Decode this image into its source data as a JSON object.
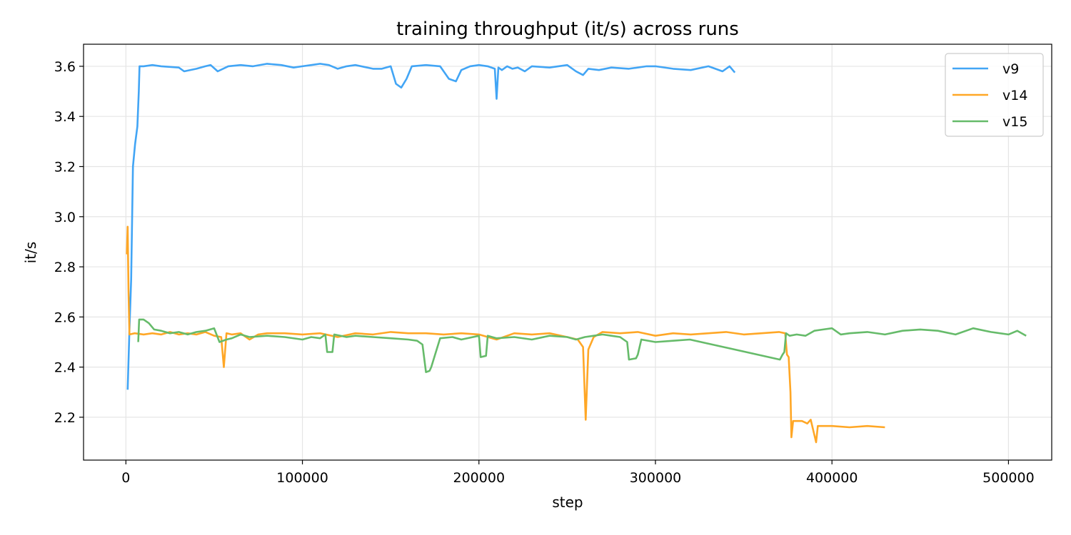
{
  "chart_data": {
    "type": "line",
    "title": "training throughput (it/s) across runs",
    "xlabel": "step",
    "ylabel": "it/s",
    "xlim": [
      -24000,
      524500
    ],
    "ylim": [
      2.029,
      3.688
    ],
    "xticks": [
      0,
      100000,
      200000,
      300000,
      400000,
      500000
    ],
    "yticks": [
      2.2,
      2.4,
      2.6,
      2.8,
      3.0,
      3.2,
      3.4,
      3.6
    ],
    "ytick_labels": [
      "2.2",
      "2.4",
      "2.6",
      "2.8",
      "3.0",
      "3.2",
      "3.4",
      "3.6"
    ],
    "grid": true,
    "legend_position": "top-right",
    "series": [
      {
        "name": "v9",
        "color": "#42a5f5",
        "x": [
          1000,
          2000,
          3000,
          4000,
          5200,
          6500,
          7300,
          7700,
          10000,
          15000,
          20000,
          30000,
          33000,
          40000,
          45000,
          48000,
          52000,
          58000,
          65000,
          72000,
          80000,
          88000,
          95000,
          100000,
          105000,
          110000,
          115000,
          120000,
          125000,
          130000,
          140000,
          145000,
          150000,
          153000,
          156000,
          159000,
          162000,
          170000,
          178000,
          183000,
          187000,
          190000,
          195000,
          200000,
          205000,
          209000,
          210000,
          211000,
          213000,
          216000,
          219000,
          222000,
          226000,
          230000,
          240000,
          250000,
          255000,
          259000,
          262000,
          268000,
          275000,
          285000,
          295000,
          300000,
          310000,
          320000,
          330000,
          338000,
          342000,
          345000
        ],
        "y": [
          2.31,
          2.55,
          2.75,
          3.2,
          3.29,
          3.36,
          3.5,
          3.6,
          3.6,
          3.605,
          3.6,
          3.595,
          3.58,
          3.59,
          3.6,
          3.605,
          3.58,
          3.6,
          3.605,
          3.6,
          3.61,
          3.605,
          3.595,
          3.6,
          3.605,
          3.61,
          3.605,
          3.59,
          3.6,
          3.605,
          3.59,
          3.59,
          3.6,
          3.53,
          3.515,
          3.55,
          3.6,
          3.605,
          3.6,
          3.55,
          3.54,
          3.585,
          3.6,
          3.605,
          3.6,
          3.59,
          3.47,
          3.595,
          3.585,
          3.6,
          3.59,
          3.595,
          3.58,
          3.6,
          3.595,
          3.605,
          3.58,
          3.565,
          3.59,
          3.585,
          3.595,
          3.59,
          3.6,
          3.6,
          3.59,
          3.585,
          3.6,
          3.58,
          3.6,
          3.575
        ]
      },
      {
        "name": "v14",
        "color": "#ffa726",
        "x": [
          500,
          1000,
          1500,
          2000,
          5000,
          10000,
          15000,
          20000,
          25000,
          30000,
          35000,
          40000,
          45000,
          50000,
          54000,
          55500,
          57000,
          60000,
          65000,
          70000,
          75000,
          80000,
          90000,
          100000,
          110000,
          120000,
          130000,
          140000,
          150000,
          160000,
          170000,
          180000,
          190000,
          200000,
          210000,
          220000,
          230000,
          240000,
          250000,
          256000,
          259000,
          260500,
          262000,
          265000,
          270000,
          280000,
          290000,
          300000,
          310000,
          320000,
          330000,
          340000,
          350000,
          360000,
          370000,
          373500,
          374500,
          375500,
          376500,
          377000,
          378000,
          383000,
          386000,
          388000,
          390000,
          391000,
          392000,
          400000,
          410000,
          420000,
          430000
        ],
        "y": [
          2.85,
          2.96,
          2.7,
          2.53,
          2.535,
          2.53,
          2.535,
          2.53,
          2.54,
          2.53,
          2.535,
          2.53,
          2.54,
          2.525,
          2.52,
          2.4,
          2.535,
          2.53,
          2.535,
          2.51,
          2.53,
          2.535,
          2.535,
          2.53,
          2.535,
          2.52,
          2.535,
          2.53,
          2.54,
          2.535,
          2.535,
          2.53,
          2.535,
          2.53,
          2.51,
          2.535,
          2.53,
          2.535,
          2.52,
          2.51,
          2.48,
          2.19,
          2.47,
          2.52,
          2.54,
          2.535,
          2.54,
          2.525,
          2.535,
          2.53,
          2.535,
          2.54,
          2.53,
          2.535,
          2.54,
          2.535,
          2.45,
          2.44,
          2.3,
          2.12,
          2.185,
          2.185,
          2.175,
          2.19,
          2.13,
          2.1,
          2.165,
          2.165,
          2.16,
          2.165,
          2.16
        ]
      },
      {
        "name": "v15",
        "color": "#66bb6a",
        "x": [
          7000,
          7500,
          10000,
          13000,
          16000,
          20000,
          25000,
          30000,
          35000,
          40000,
          45000,
          50000,
          53000,
          57000,
          60000,
          65000,
          70000,
          80000,
          90000,
          100000,
          105000,
          110000,
          113000,
          114000,
          117000,
          118000,
          125000,
          130000,
          140000,
          150000,
          160000,
          165000,
          168000,
          170000,
          172000,
          173000,
          178000,
          185000,
          190000,
          200000,
          201000,
          204000,
          205000,
          210000,
          220000,
          230000,
          240000,
          250000,
          255000,
          260000,
          265000,
          270000,
          275000,
          280000,
          284000,
          285000,
          289000,
          290000,
          292000,
          300000,
          310000,
          319500,
          370500,
          372000,
          373000,
          374000,
          376000,
          380000,
          385000,
          390000,
          395000,
          400000,
          405000,
          410000,
          420000,
          430000,
          440000,
          450000,
          460000,
          470000,
          480000,
          490000,
          500000,
          505000,
          510000
        ],
        "y": [
          2.5,
          2.59,
          2.59,
          2.575,
          2.55,
          2.545,
          2.535,
          2.54,
          2.53,
          2.54,
          2.545,
          2.555,
          2.5,
          2.51,
          2.515,
          2.53,
          2.52,
          2.525,
          2.52,
          2.51,
          2.52,
          2.515,
          2.53,
          2.46,
          2.46,
          2.53,
          2.52,
          2.525,
          2.52,
          2.515,
          2.51,
          2.505,
          2.49,
          2.38,
          2.385,
          2.4,
          2.515,
          2.52,
          2.51,
          2.525,
          2.44,
          2.445,
          2.525,
          2.515,
          2.52,
          2.51,
          2.525,
          2.52,
          2.51,
          2.52,
          2.525,
          2.53,
          2.525,
          2.52,
          2.5,
          2.43,
          2.435,
          2.45,
          2.51,
          2.5,
          2.505,
          2.51,
          2.43,
          2.45,
          2.46,
          2.535,
          2.525,
          2.53,
          2.525,
          2.545,
          2.55,
          2.555,
          2.53,
          2.535,
          2.54,
          2.53,
          2.545,
          2.55,
          2.545,
          2.53,
          2.555,
          2.54,
          2.53,
          2.545,
          2.525
        ]
      }
    ]
  }
}
